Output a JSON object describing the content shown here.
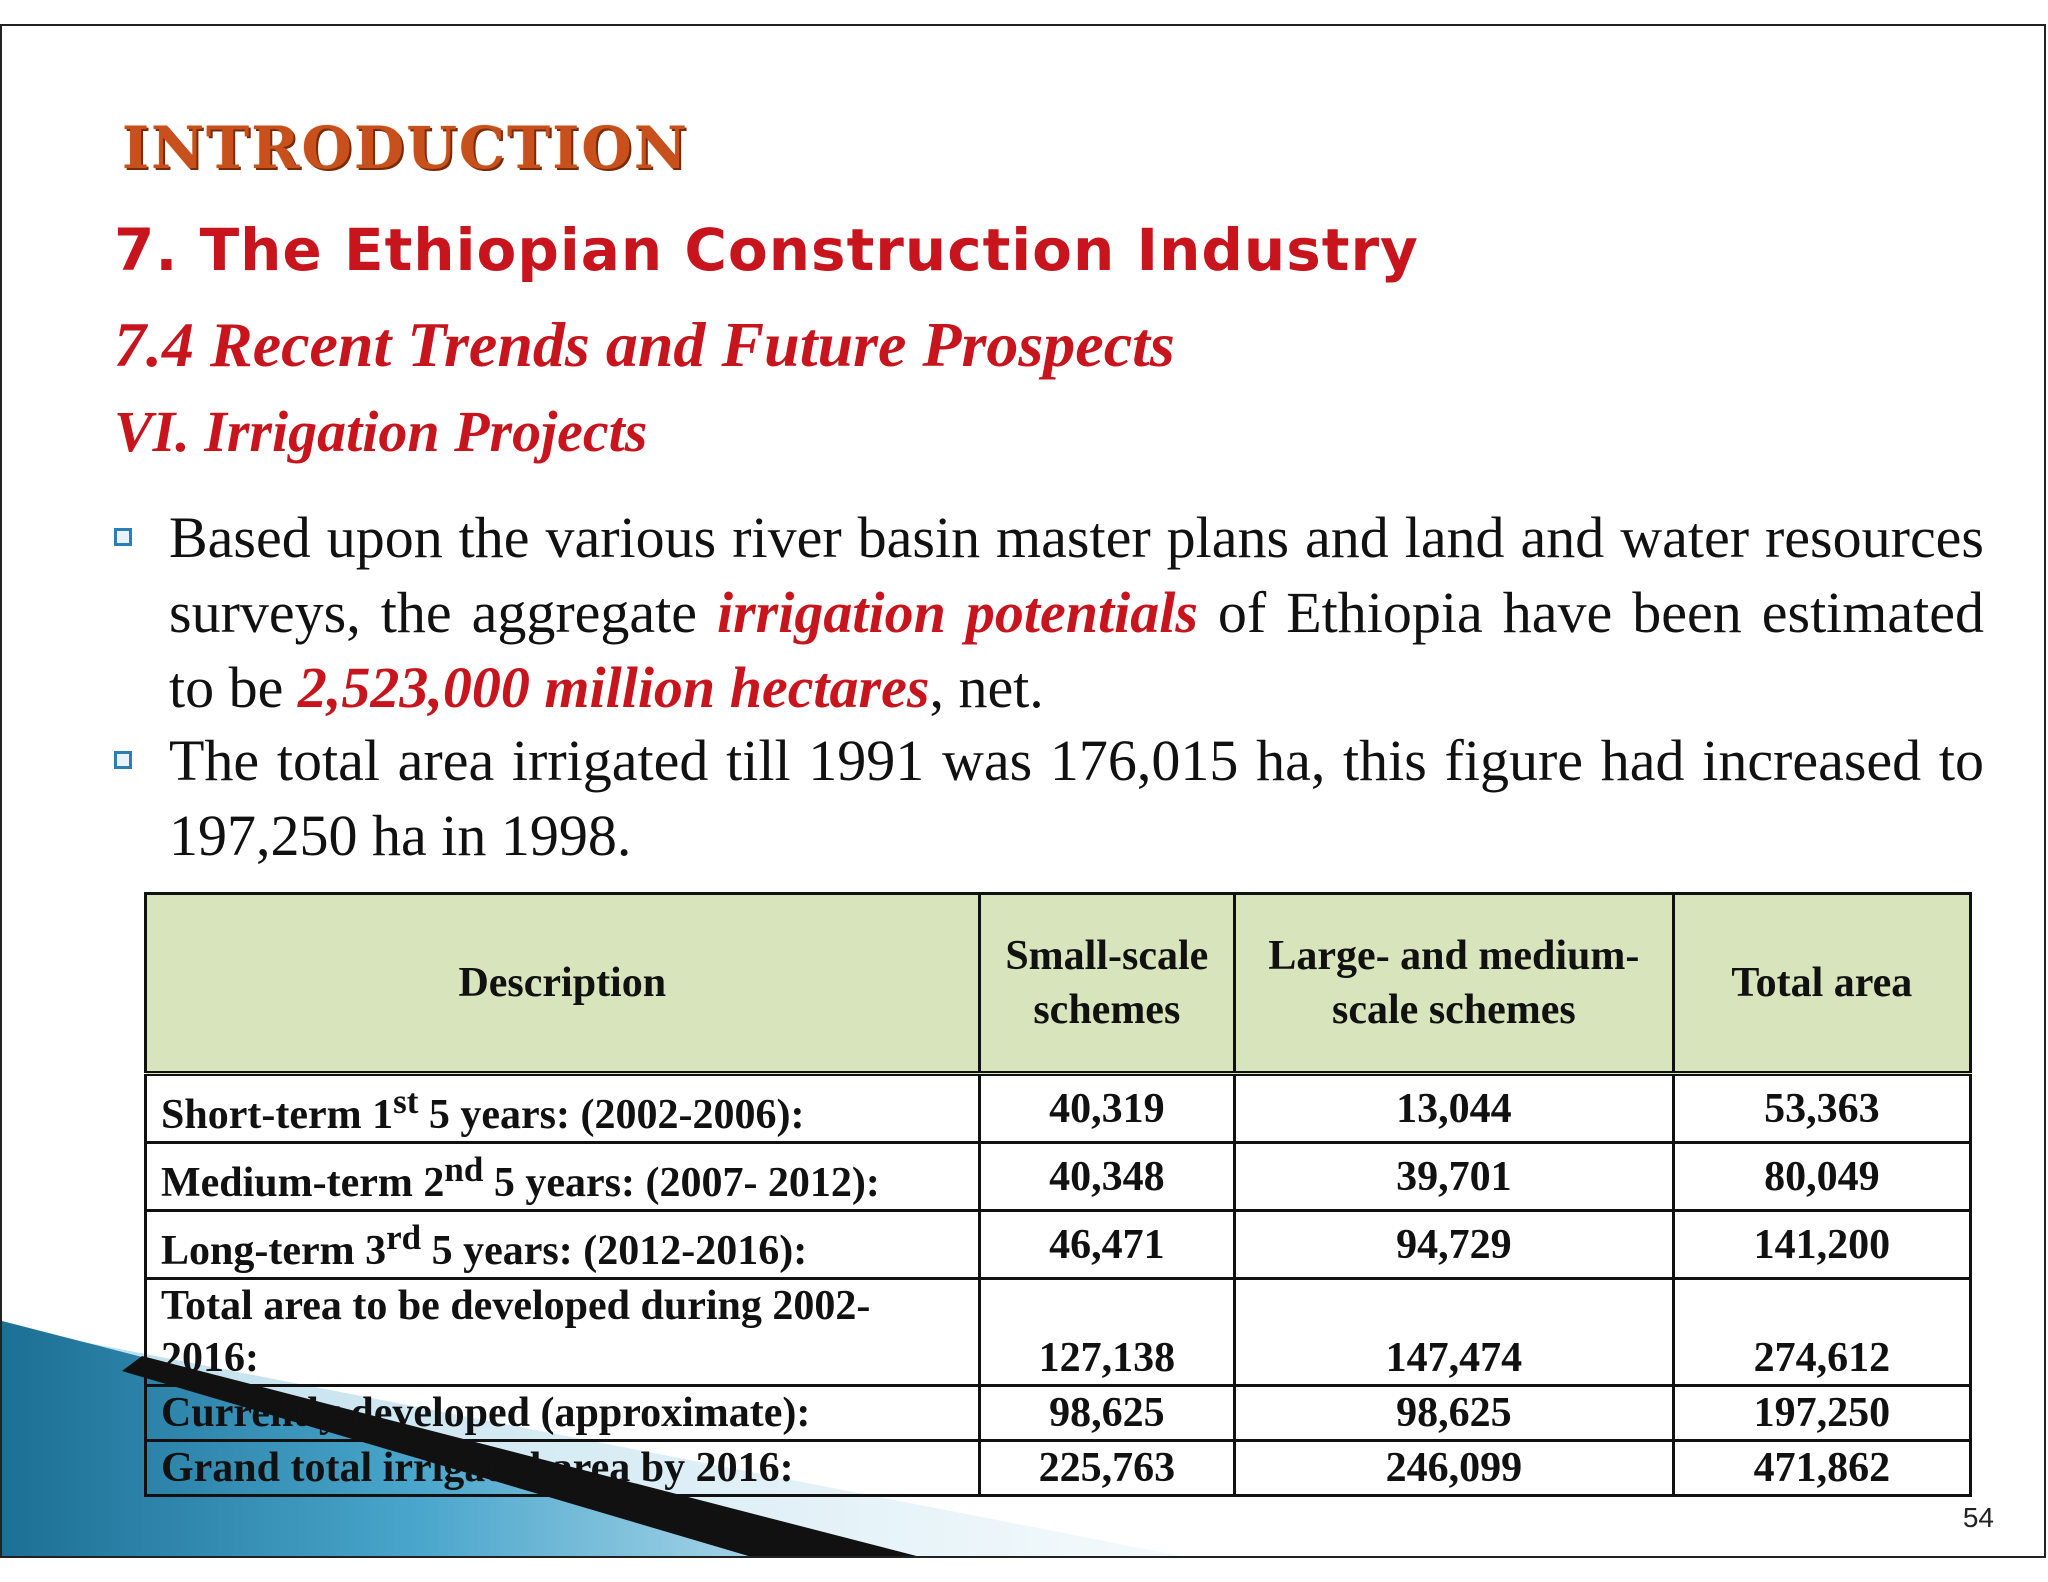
{
  "slide": {
    "section_title": "INTRODUCTION",
    "heading": "7. The Ethiopian Construction Industry",
    "subheading": "7.4 Recent Trends and Future Prospects",
    "subsection": "VI. Irrigation Projects",
    "bullet1": {
      "part1": "Based upon the various river basin master plans and land and water resources surveys, the aggregate ",
      "emph1": "irrigation potentials",
      "part2": " of Ethiopia have been estimated to be ",
      "emph2": "2,523,000 million hectares",
      "part3": ", net."
    },
    "bullet2": "The total area irrigated till 1991 was 176,015 ha, this figure had increased to 197,250 ha in 1998.",
    "table": {
      "headers": [
        "Description",
        "Small-scale schemes",
        "Large- and medium-scale schemes",
        "Total area"
      ],
      "rows": [
        {
          "desc_pre": "Short-term 1",
          "sup": "st",
          "desc_post": " 5 years: (2002-2006):",
          "small": "40,319",
          "large": "13,044",
          "total": "53,363"
        },
        {
          "desc_pre": "Medium-term 2",
          "sup": "nd",
          "desc_post": " 5 years: (2007- 2012):",
          "small": "40,348",
          "large": "39,701",
          "total": "80,049"
        },
        {
          "desc_pre": "Long-term 3",
          "sup": "rd",
          "desc_post": " 5 years: (2012-2016):",
          "small": "46,471",
          "large": "94,729",
          "total": "141,200"
        },
        {
          "desc": "Total area to be developed during 2002-2016:",
          "small": "127,138",
          "large": "147,474",
          "total": "274,612"
        },
        {
          "desc": "Currently developed (approximate):",
          "small": "98,625",
          "large": "98,625",
          "total": "197,250"
        },
        {
          "desc": "Grand total irrigated area by 2016:",
          "small": "225,763",
          "large": "246,099",
          "total": "471,862"
        }
      ]
    },
    "page_number": "54",
    "colors": {
      "heading_red": "#c8141c",
      "title_orange": "#c8501c",
      "table_header_bg": "#d8e4bc",
      "bullet_blue": "#2a7fb5"
    }
  }
}
